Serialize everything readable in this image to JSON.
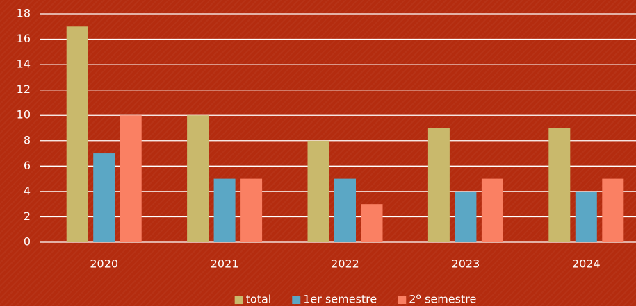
{
  "chart_data": {
    "type": "bar",
    "categories": [
      "2020",
      "2021",
      "2022",
      "2023",
      "2024"
    ],
    "series": [
      {
        "name": "total",
        "color": "#c9b96c",
        "values": [
          17,
          10,
          8,
          9,
          9
        ]
      },
      {
        "name": "1er semestre",
        "color": "#5ba7c5",
        "values": [
          7,
          5,
          5,
          4,
          4
        ]
      },
      {
        "name": "2º semestre",
        "color": "#fa8063",
        "values": [
          10,
          5,
          3,
          5,
          5
        ]
      }
    ],
    "ylim": [
      0,
      18
    ],
    "yticks": [
      0,
      2,
      4,
      6,
      8,
      10,
      12,
      14,
      16,
      18
    ],
    "grid": true,
    "legend": "bottom"
  }
}
